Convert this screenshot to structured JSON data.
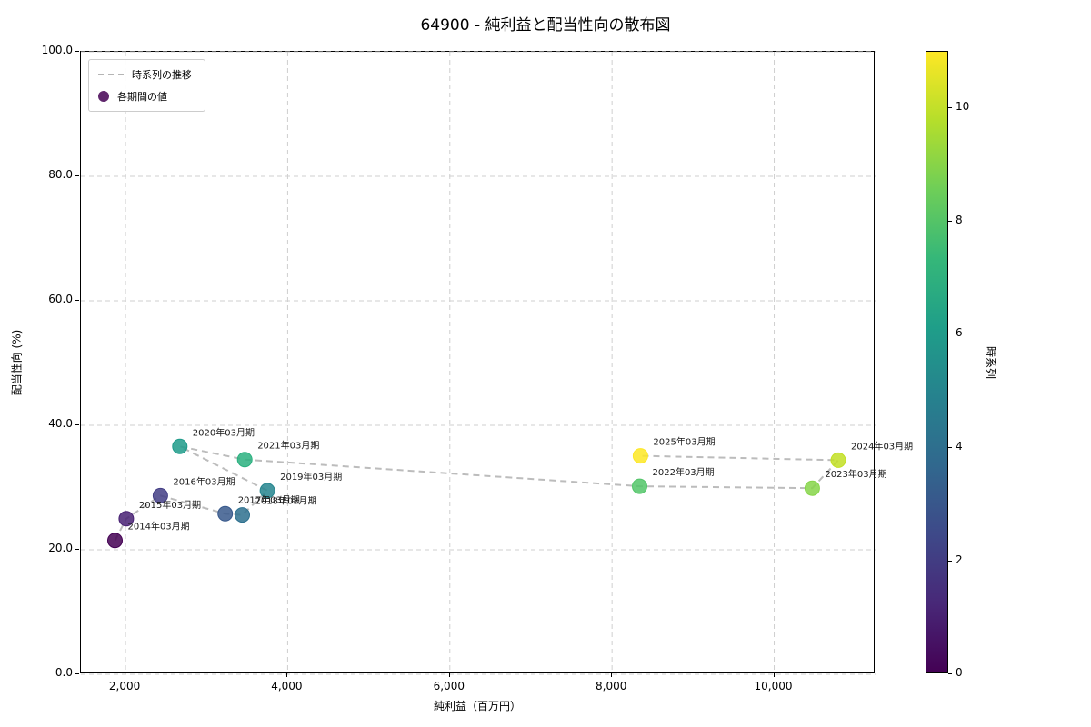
{
  "chart_data": {
    "type": "scatter",
    "title": "64900 - 純利益と配当性向の散布図",
    "xlabel": "純利益（百万円）",
    "ylabel": "配当性向 (%)",
    "xlim": [
      1450,
      11250
    ],
    "ylim": [
      0,
      100
    ],
    "grid": true,
    "trend_line_color": "#bcbcbc",
    "legend": {
      "position": "upper left",
      "line_label": "時系列の推移",
      "marker_label": "各期間の値"
    },
    "xticks": [
      {
        "value": 2000,
        "label": "2,000"
      },
      {
        "value": 4000,
        "label": "4,000"
      },
      {
        "value": 6000,
        "label": "6,000"
      },
      {
        "value": 8000,
        "label": "8,000"
      },
      {
        "value": 10000,
        "label": "10,000"
      }
    ],
    "yticks": [
      {
        "value": 0,
        "label": "0.0"
      },
      {
        "value": 20,
        "label": "20.0"
      },
      {
        "value": 40,
        "label": "40.0"
      },
      {
        "value": 60,
        "label": "60.0"
      },
      {
        "value": 80,
        "label": "80.0"
      },
      {
        "value": 100,
        "label": "100.0"
      }
    ],
    "points": [
      {
        "label": "2014年03月期",
        "x": 1870,
        "y": 21.5,
        "t": 0,
        "color": "#440154"
      },
      {
        "label": "2015年03月期",
        "x": 2010,
        "y": 25.0,
        "t": 1,
        "color": "#482173"
      },
      {
        "label": "2016年03月期",
        "x": 2430,
        "y": 28.7,
        "t": 2,
        "color": "#433e85"
      },
      {
        "label": "2017年03月期",
        "x": 3230,
        "y": 25.8,
        "t": 3,
        "color": "#38598c"
      },
      {
        "label": "2018年03月期",
        "x": 3440,
        "y": 25.6,
        "t": 4,
        "color": "#2d708e"
      },
      {
        "label": "2019年03月期",
        "x": 3750,
        "y": 29.5,
        "t": 5,
        "color": "#25858e"
      },
      {
        "label": "2020年03月期",
        "x": 2670,
        "y": 36.6,
        "t": 6,
        "color": "#1e9b8a"
      },
      {
        "label": "2021年03月期",
        "x": 3470,
        "y": 34.5,
        "t": 7,
        "color": "#2ab07f"
      },
      {
        "label": "2022年03月期",
        "x": 8340,
        "y": 30.2,
        "t": 8,
        "color": "#52c569"
      },
      {
        "label": "2023年03月期",
        "x": 10470,
        "y": 29.9,
        "t": 9,
        "color": "#86d549"
      },
      {
        "label": "2024年03月期",
        "x": 10790,
        "y": 34.4,
        "t": 10,
        "color": "#c2df23"
      },
      {
        "label": "2025年03月期",
        "x": 8350,
        "y": 35.1,
        "t": 11,
        "color": "#fde725"
      }
    ],
    "colorbar": {
      "label": "時系列",
      "min": 0,
      "max": 11,
      "ticks": [
        0,
        2,
        4,
        6,
        8,
        10
      ],
      "gradient": [
        "#440154",
        "#482878",
        "#3e4989",
        "#31688e",
        "#26828e",
        "#1f9e89",
        "#35b779",
        "#6ece58",
        "#b5de2b",
        "#fde725"
      ]
    }
  }
}
